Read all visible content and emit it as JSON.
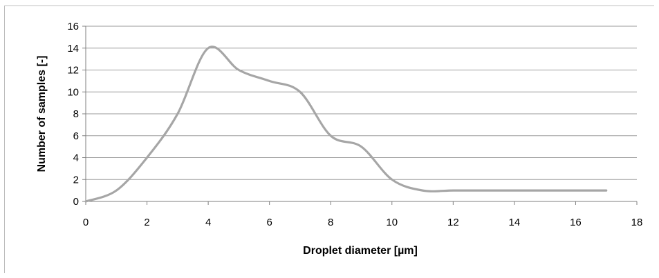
{
  "chart_data": {
    "type": "line",
    "title": "",
    "xlabel": "Droplet diameter [µm]",
    "ylabel": "Number of samples [-]",
    "xlim": [
      0,
      18
    ],
    "ylim": [
      0,
      16
    ],
    "x_ticks": [
      0,
      2,
      4,
      6,
      8,
      10,
      12,
      14,
      16,
      18
    ],
    "y_ticks": [
      0,
      2,
      4,
      6,
      8,
      10,
      12,
      14,
      16
    ],
    "grid": "horizontal",
    "legend": "none",
    "series": [
      {
        "color": "#a6a6a6",
        "smooth": true,
        "x": [
          0,
          1,
          2,
          3,
          4,
          5,
          6,
          7,
          8,
          9,
          10,
          11,
          12,
          13,
          14,
          15,
          16,
          17
        ],
        "y": [
          0,
          1,
          4,
          8,
          14,
          12,
          11,
          10,
          6,
          5,
          2,
          1,
          1,
          1,
          1,
          1,
          1,
          1
        ]
      }
    ]
  }
}
